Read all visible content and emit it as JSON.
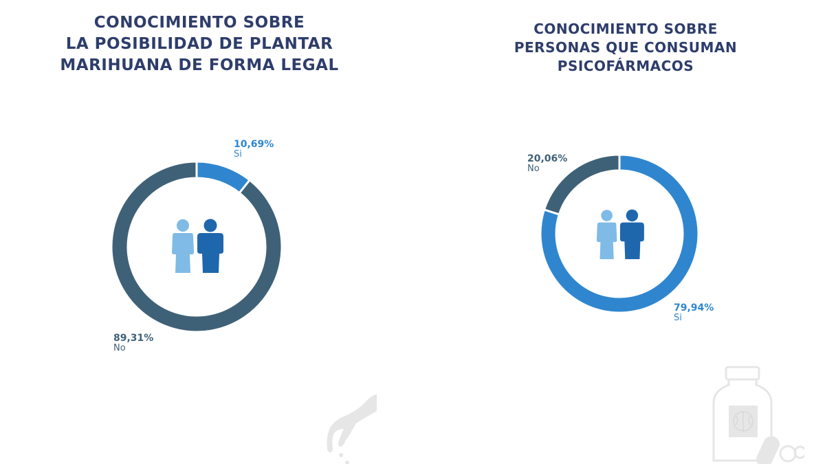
{
  "colors": {
    "title": "#2e3d6b",
    "si_blue": "#2f86cf",
    "no_slate": "#3f6177",
    "female_icon": "#7fbbe6",
    "male_icon": "#1f67ac",
    "watermark": "#e6e6e6"
  },
  "left_chart": {
    "title_lines": [
      "CONOCIMIENTO SOBRE",
      "LA POSIBILIDAD DE PLANTAR",
      "MARIHUANA DE FORMA LEGAL"
    ],
    "segments": [
      {
        "label": "Si",
        "value_text": "10,69%",
        "value": 10.69
      },
      {
        "label": "No",
        "value_text": "89,31%",
        "value": 89.31
      }
    ],
    "center_icon": "people-icon",
    "watermark_icon": "hand-planting-icon"
  },
  "right_chart": {
    "title_lines": [
      "CONOCIMIENTO SOBRE",
      "PERSONAS QUE CONSUMAN",
      "PSICOFÁRMACOS"
    ],
    "segments": [
      {
        "label": "Si",
        "value_text": "79,94%",
        "value": 79.94
      },
      {
        "label": "No",
        "value_text": "20,06%",
        "value": 20.06
      }
    ],
    "center_icon": "people-icon",
    "watermark_icon": "pill-bottle-icon"
  },
  "chart_data": [
    {
      "type": "pie",
      "title": "Conocimiento sobre la posibilidad de plantar marihuana de forma legal",
      "categories": [
        "Si",
        "No"
      ],
      "values": [
        10.69,
        89.31
      ],
      "unit": "%",
      "donut": true,
      "colors": [
        "#2f86cf",
        "#3f6177"
      ]
    },
    {
      "type": "pie",
      "title": "Conocimiento sobre personas que consuman psicofármacos",
      "categories": [
        "Si",
        "No"
      ],
      "values": [
        79.94,
        20.06
      ],
      "unit": "%",
      "donut": true,
      "colors": [
        "#2f86cf",
        "#3f6177"
      ]
    }
  ]
}
